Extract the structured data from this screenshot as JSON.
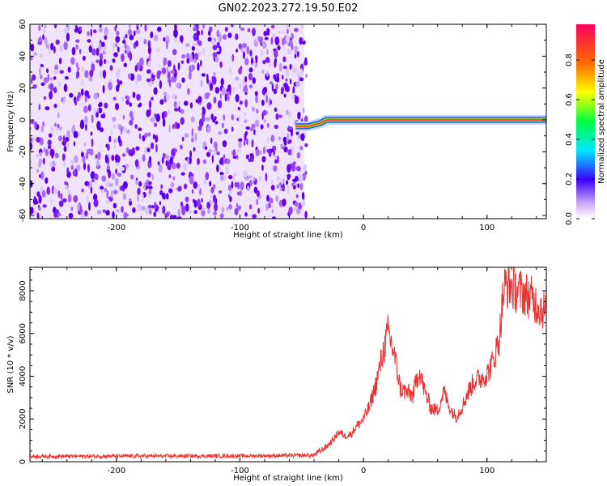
{
  "title": "GN02.2023.272.19.50.E02",
  "chart_data": [
    {
      "type": "heatmap",
      "xlabel": "Height of straight line (km)",
      "ylabel": "Frequency (Hz)",
      "xlim": [
        -270,
        148
      ],
      "ylim": [
        -62,
        60
      ],
      "xticks": [
        "-200",
        "-100",
        "0",
        "100"
      ],
      "yticks": [
        "-60",
        "-40",
        "-20",
        "0",
        "20",
        "40",
        "60"
      ],
      "noise_region_x": [
        -270,
        -48
      ],
      "signal_trace": {
        "x": [
          -55,
          -50,
          -45,
          -40,
          -35,
          -30,
          -25,
          -20,
          -15,
          -10,
          -5,
          0,
          50,
          100,
          148
        ],
        "y": [
          -4,
          -4,
          -4,
          -3,
          -2,
          0,
          0,
          0,
          0,
          0,
          0,
          0,
          0,
          0,
          0
        ]
      },
      "colorbar": {
        "label": "Normalized spectral amplitude",
        "ticks": [
          "0.0",
          "0.2",
          "0.4",
          "0.6",
          "0.8"
        ],
        "range": [
          0,
          0.98
        ]
      },
      "grid": false
    },
    {
      "type": "line",
      "xlabel": "Height of straight line (km)",
      "ylabel": "SNR (10 * v/v)",
      "xlim": [
        -270,
        148
      ],
      "ylim": [
        0,
        9100
      ],
      "xticks": [
        "-200",
        "-100",
        "0",
        "100"
      ],
      "yticks": [
        "0",
        "2000",
        "4000",
        "6000",
        "8000"
      ],
      "color": "#f03030",
      "series": [
        {
          "x": [
            -270,
            -200,
            -100,
            -40,
            -30,
            -25,
            -20,
            -15,
            -10,
            -5,
            0,
            5,
            10,
            15,
            20,
            25,
            30,
            40,
            45,
            50,
            55,
            60,
            65,
            70,
            75,
            80,
            85,
            90,
            95,
            100,
            105,
            110,
            113,
            115,
            120,
            125,
            130,
            135,
            140,
            148
          ],
          "y": [
            250,
            260,
            270,
            300,
            700,
            1000,
            1400,
            1200,
            1300,
            1700,
            2000,
            2600,
            3600,
            4900,
            6100,
            5000,
            3400,
            3100,
            4300,
            3200,
            2500,
            2400,
            3300,
            2500,
            2100,
            2600,
            3300,
            3800,
            3900,
            4100,
            4700,
            5800,
            7800,
            8300,
            8200,
            8000,
            7900,
            7700,
            7400,
            7000
          ]
        }
      ],
      "grid": false
    }
  ]
}
